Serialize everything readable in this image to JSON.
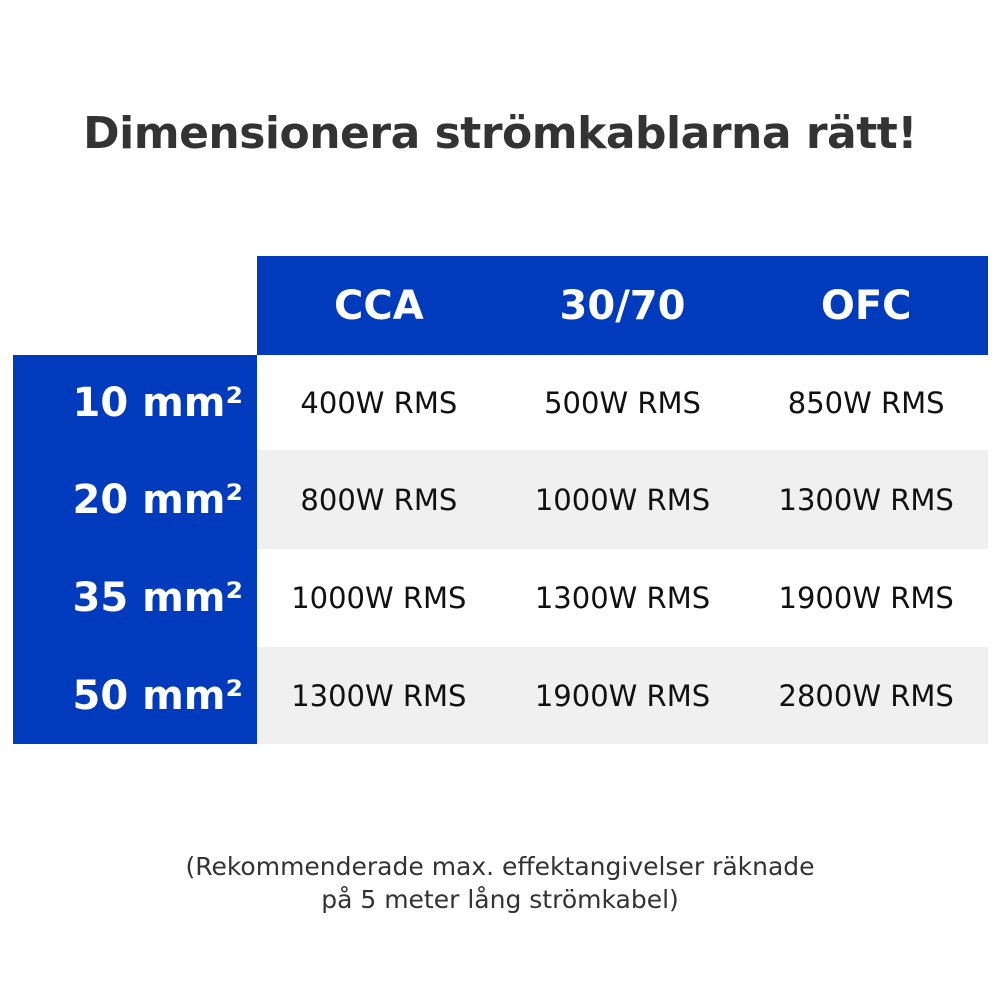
{
  "title": "Dimensionera strömkablarna rätt!",
  "colors": {
    "accent": "#003bbd",
    "alt_row": "#f0f0f0",
    "text": "#333333"
  },
  "columns": [
    "CCA",
    "30/70",
    "OFC"
  ],
  "rows": [
    {
      "label": "10 mm²",
      "values": [
        "400W RMS",
        "500W RMS",
        "850W RMS"
      ]
    },
    {
      "label": "20 mm²",
      "values": [
        "800W RMS",
        "1000W RMS",
        "1300W RMS"
      ]
    },
    {
      "label": "35 mm²",
      "values": [
        "1000W RMS",
        "1300W RMS",
        "1900W RMS"
      ]
    },
    {
      "label": "50 mm²",
      "values": [
        "1300W RMS",
        "1900W RMS",
        "2800W RMS"
      ]
    }
  ],
  "note": {
    "line1": "(Rekommenderade max. effektangivelser räknade",
    "line2": "på 5 meter lång strömkabel)"
  }
}
